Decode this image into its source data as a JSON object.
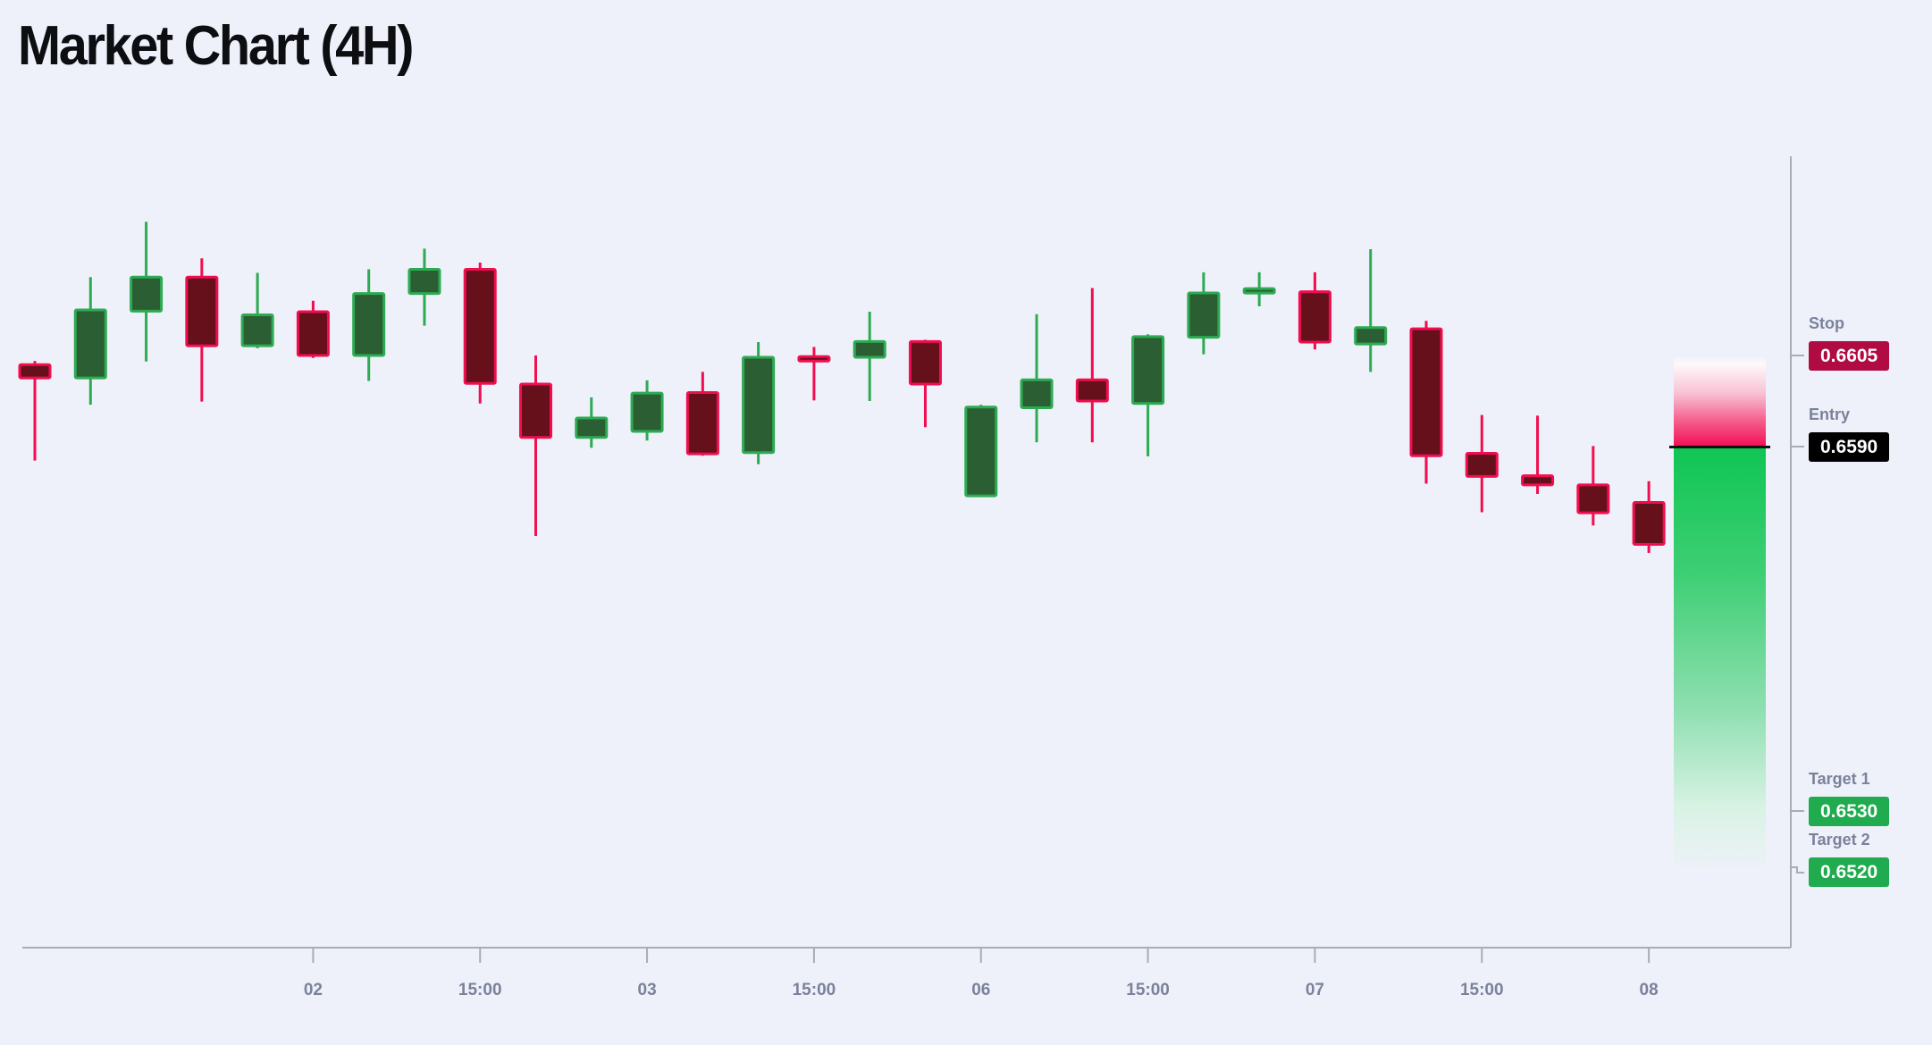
{
  "title": "Market Chart (4H)",
  "colors": {
    "background": "#eef1f9",
    "axis": "#a8acb8",
    "muted_label": "#7b819b",
    "bull_border": "#2cab52",
    "bull_fill": "#2b5f33",
    "bear_border": "#f10d50",
    "bear_fill": "#65101b",
    "stop_badge": "#b00b42",
    "entry_badge": "#000000",
    "target_badge": "#1fab4e",
    "badge_text": "#ffffff",
    "entry_line": "#111111",
    "risk_zone_color": "#f30d55",
    "reward_zone_color": "#0fc553"
  },
  "side_panel": {
    "stop": {
      "label": "Stop",
      "value": "0.6605"
    },
    "entry": {
      "label": "Entry",
      "value": "0.6590"
    },
    "target1": {
      "label": "Target 1",
      "value": "0.6530"
    },
    "target2": {
      "label": "Target 2",
      "value": "0.6520"
    }
  },
  "chart_data": {
    "type": "candlestick",
    "title": "Market Chart (4H)",
    "timeframe": "4H",
    "levels": {
      "stop": 0.6605,
      "entry": 0.659,
      "target1": 0.653,
      "target2": 0.652
    },
    "y_implied_range": [
      0.652,
      0.663
    ],
    "grid": false,
    "x_ticks": [
      {
        "label": "02",
        "candle_index": 5
      },
      {
        "label": "15:00",
        "candle_index": 8
      },
      {
        "label": "03",
        "candle_index": 11
      },
      {
        "label": "15:00",
        "candle_index": 14
      },
      {
        "label": "06",
        "candle_index": 17
      },
      {
        "label": "15:00",
        "candle_index": 20
      },
      {
        "label": "07",
        "candle_index": 23
      },
      {
        "label": "15:00",
        "candle_index": 26
      },
      {
        "label": "08",
        "candle_index": 29
      }
    ],
    "candles": [
      {
        "o": 0.66035,
        "h": 0.66041,
        "l": 0.65877,
        "c": 0.66013
      },
      {
        "o": 0.66013,
        "h": 0.66179,
        "l": 0.65969,
        "c": 0.66125
      },
      {
        "o": 0.66123,
        "h": 0.6627,
        "l": 0.6604,
        "c": 0.66179
      },
      {
        "o": 0.66179,
        "h": 0.6621,
        "l": 0.65974,
        "c": 0.66066
      },
      {
        "o": 0.66066,
        "h": 0.66186,
        "l": 0.66062,
        "c": 0.66117
      },
      {
        "o": 0.66122,
        "h": 0.6614,
        "l": 0.66046,
        "c": 0.6605
      },
      {
        "o": 0.6605,
        "h": 0.66192,
        "l": 0.66008,
        "c": 0.66152
      },
      {
        "o": 0.66152,
        "h": 0.66226,
        "l": 0.66099,
        "c": 0.66192
      },
      {
        "o": 0.66192,
        "h": 0.66203,
        "l": 0.65971,
        "c": 0.66004
      },
      {
        "o": 0.66003,
        "h": 0.6605,
        "l": 0.65753,
        "c": 0.65915
      },
      {
        "o": 0.65915,
        "h": 0.65981,
        "l": 0.65898,
        "c": 0.65947
      },
      {
        "o": 0.65925,
        "h": 0.66009,
        "l": 0.6591,
        "c": 0.65988
      },
      {
        "o": 0.65989,
        "h": 0.66023,
        "l": 0.65885,
        "c": 0.65888
      },
      {
        "o": 0.6589,
        "h": 0.66072,
        "l": 0.65871,
        "c": 0.66047
      },
      {
        "o": 0.66047,
        "h": 0.66064,
        "l": 0.65976,
        "c": 0.66042
      },
      {
        "o": 0.66047,
        "h": 0.66122,
        "l": 0.65975,
        "c": 0.66073
      },
      {
        "o": 0.66073,
        "h": 0.66076,
        "l": 0.65932,
        "c": 0.66003
      },
      {
        "o": 0.65819,
        "h": 0.65969,
        "l": 0.65818,
        "c": 0.65965
      },
      {
        "o": 0.65964,
        "h": 0.66118,
        "l": 0.65907,
        "c": 0.6601
      },
      {
        "o": 0.6601,
        "h": 0.66161,
        "l": 0.65907,
        "c": 0.65975
      },
      {
        "o": 0.65971,
        "h": 0.66085,
        "l": 0.65884,
        "c": 0.66081
      },
      {
        "o": 0.6608,
        "h": 0.66187,
        "l": 0.66052,
        "c": 0.66153
      },
      {
        "o": 0.66154,
        "h": 0.66187,
        "l": 0.66131,
        "c": 0.66159
      },
      {
        "o": 0.66155,
        "h": 0.66187,
        "l": 0.6606,
        "c": 0.66072
      },
      {
        "o": 0.66069,
        "h": 0.66225,
        "l": 0.66023,
        "c": 0.66096
      },
      {
        "o": 0.66094,
        "h": 0.66107,
        "l": 0.65839,
        "c": 0.65885
      },
      {
        "o": 0.65889,
        "h": 0.65952,
        "l": 0.65792,
        "c": 0.65851
      },
      {
        "o": 0.65852,
        "h": 0.65951,
        "l": 0.65822,
        "c": 0.65837
      },
      {
        "o": 0.65837,
        "h": 0.65901,
        "l": 0.6577,
        "c": 0.65791
      },
      {
        "o": 0.65808,
        "h": 0.65843,
        "l": 0.65725,
        "c": 0.65739
      }
    ]
  }
}
